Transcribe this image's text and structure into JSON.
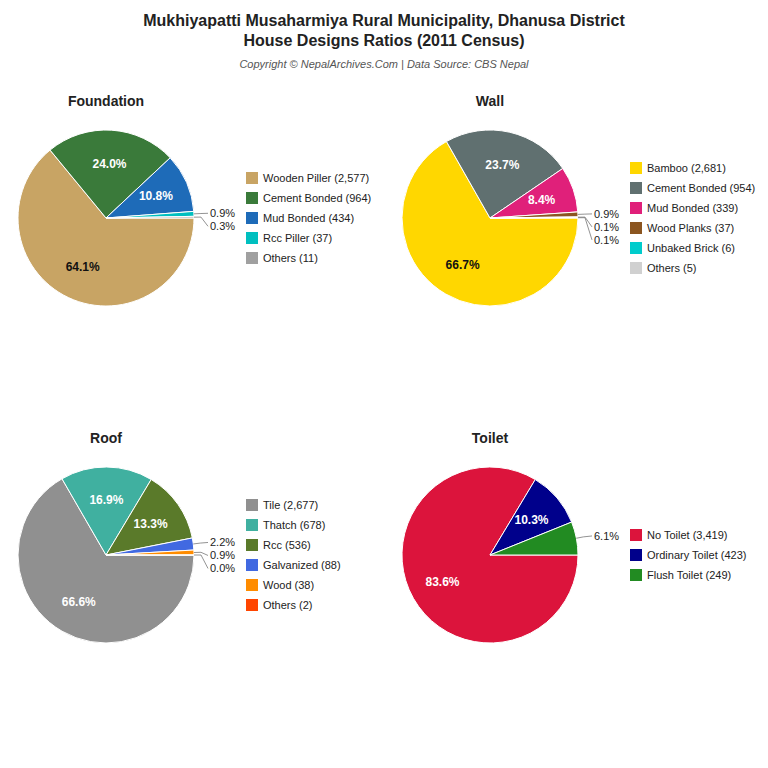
{
  "title": "Mukhiyapatti Musaharmiya Rural Municipality, Dhanusa District\nHouse Designs Ratios (2011 Census)",
  "subtitle": "Copyright © NepalArchives.Com | Data Source: CBS Nepal",
  "chart_data": [
    {
      "type": "pie",
      "title": "Foundation",
      "categories": [
        "Wooden Piller (2,577)",
        "Cement Bonded (964)",
        "Mud Bonded (434)",
        "Rcc Piller (37)",
        "Others (11)"
      ],
      "values": [
        64.1,
        24.0,
        10.8,
        0.9,
        0.3
      ],
      "value_labels": [
        "64.1%",
        "24.0%",
        "10.8%",
        "0.9%",
        "0.3%"
      ],
      "colors": [
        "#C8A464",
        "#3A7A3A",
        "#1E6BB8",
        "#00BFBF",
        "#A0A0A0"
      ],
      "data_labels": true,
      "legend": "right"
    },
    {
      "type": "pie",
      "title": "Wall",
      "categories": [
        "Bamboo (2,681)",
        "Cement Bonded (954)",
        "Mud Bonded (339)",
        "Wood Planks (37)",
        "Unbaked Brick (6)",
        "Others (5)"
      ],
      "values": [
        66.7,
        23.7,
        8.4,
        0.9,
        0.1,
        0.1
      ],
      "value_labels": [
        "66.7%",
        "23.7%",
        "8.4%",
        "0.9%",
        "0.1%",
        "0.1%"
      ],
      "colors": [
        "#FFD700",
        "#607070",
        "#E0207A",
        "#8B5520",
        "#00CCCC",
        "#D0D0D0"
      ],
      "data_labels": true,
      "legend": "right"
    },
    {
      "type": "pie",
      "title": "Roof",
      "categories": [
        "Tile (2,677)",
        "Thatch (678)",
        "Rcc (536)",
        "Galvanized (88)",
        "Wood (38)",
        "Others (2)"
      ],
      "values": [
        66.6,
        16.9,
        13.3,
        2.2,
        0.9,
        0.0
      ],
      "value_labels": [
        "66.6%",
        "16.9%",
        "13.3%",
        "2.2%",
        "0.9%",
        "0.0%"
      ],
      "colors": [
        "#909090",
        "#40B0A0",
        "#5A7A2A",
        "#4169E1",
        "#FF8C00",
        "#FF4500"
      ],
      "data_labels": true,
      "legend": "right"
    },
    {
      "type": "pie",
      "title": "Toilet",
      "categories": [
        "No Toilet (3,419)",
        "Ordinary Toilet (423)",
        "Flush Toilet (249)"
      ],
      "values": [
        83.6,
        10.3,
        6.1
      ],
      "value_labels": [
        "83.6%",
        "10.3%",
        "6.1%"
      ],
      "colors": [
        "#DC143C",
        "#00008B",
        "#228B22"
      ],
      "data_labels": true,
      "legend": "right"
    }
  ]
}
